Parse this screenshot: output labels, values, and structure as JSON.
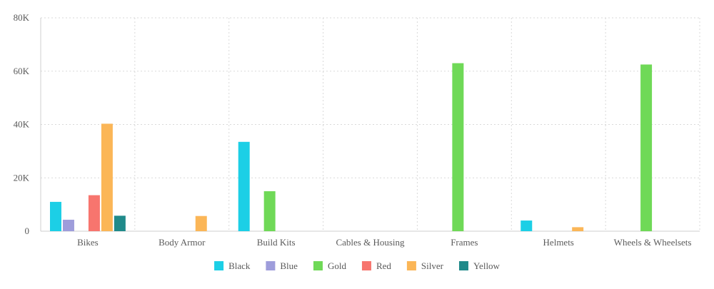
{
  "chart_data": {
    "type": "bar",
    "categories": [
      "Bikes",
      "Body Armor",
      "Build Kits",
      "Cables & Housing",
      "Frames",
      "Helmets",
      "Wheels & Wheelsets"
    ],
    "ylim": [
      0,
      80000
    ],
    "yticks": [
      0,
      20000,
      40000,
      60000,
      80000
    ],
    "ytick_labels": [
      "0",
      "20K",
      "40K",
      "60K",
      "80K"
    ],
    "grid": true,
    "legend_position": "bottom-center",
    "series": [
      {
        "name": "Black",
        "color": "#1ccfe6",
        "values": [
          11000,
          0,
          33500,
          0,
          0,
          4000,
          0
        ]
      },
      {
        "name": "Blue",
        "color": "#9e9ddb",
        "values": [
          4300,
          0,
          0,
          0,
          0,
          0,
          0
        ]
      },
      {
        "name": "Gold",
        "color": "#6fd957",
        "values": [
          0,
          0,
          15000,
          0,
          63000,
          0,
          62500
        ]
      },
      {
        "name": "Red",
        "color": "#f7756e",
        "values": [
          13500,
          0,
          0,
          0,
          0,
          0,
          0
        ]
      },
      {
        "name": "Silver",
        "color": "#fbb657",
        "values": [
          40300,
          5700,
          0,
          0,
          0,
          1500,
          0
        ]
      },
      {
        "name": "Yellow",
        "color": "#208a8a",
        "values": [
          5800,
          0,
          0,
          0,
          0,
          0,
          0
        ]
      }
    ]
  }
}
